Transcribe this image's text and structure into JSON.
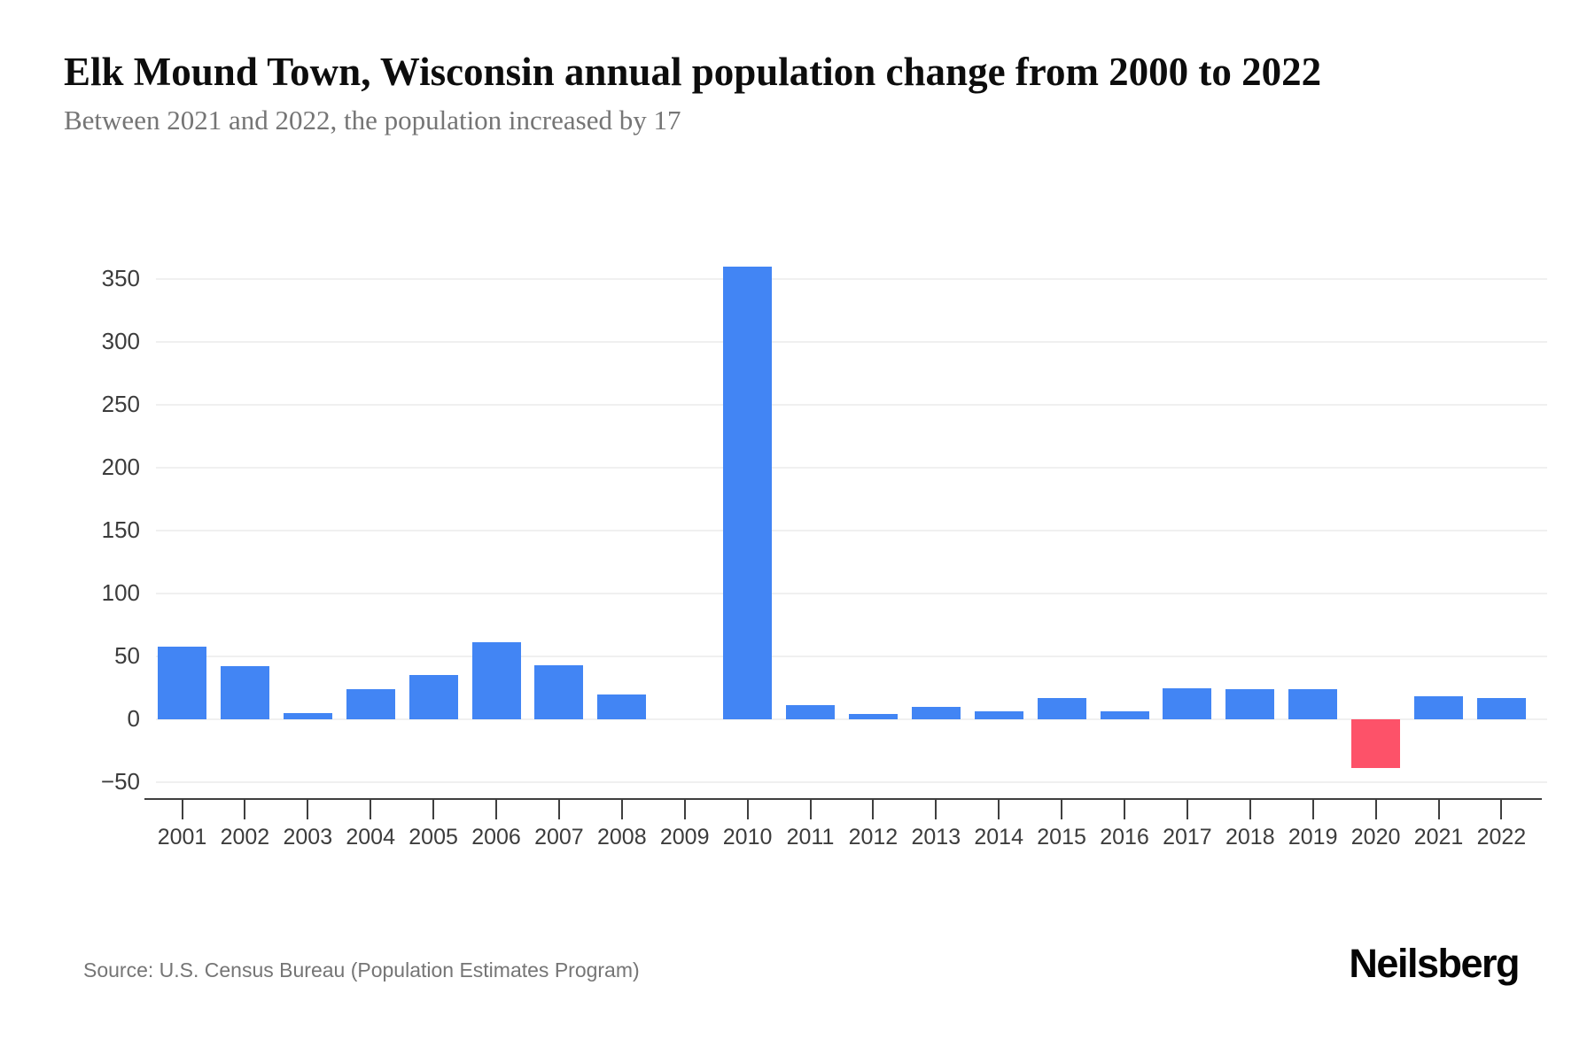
{
  "header": {
    "title": "Elk Mound Town, Wisconsin annual population change from 2000 to 2022",
    "subtitle": "Between 2021 and 2022, the population increased by 17"
  },
  "footer": {
    "source": "Source: U.S. Census Bureau (Population Estimates Program)",
    "brand": "Neilsberg"
  },
  "chart_data": {
    "type": "bar",
    "title": "Elk Mound Town, Wisconsin annual population change from 2000 to 2022",
    "subtitle": "Between 2021 and 2022, the population increased by 17",
    "categories": [
      "2001",
      "2002",
      "2003",
      "2004",
      "2005",
      "2006",
      "2007",
      "2008",
      "2009",
      "2010",
      "2011",
      "2012",
      "2013",
      "2014",
      "2015",
      "2016",
      "2017",
      "2018",
      "2019",
      "2020",
      "2021",
      "2022"
    ],
    "values": [
      58,
      42,
      5,
      24,
      35,
      61,
      43,
      20,
      0,
      360,
      11,
      4,
      10,
      6,
      17,
      6,
      25,
      24,
      24,
      -39,
      18,
      17
    ],
    "xlabel": "",
    "ylabel": "",
    "yticks": [
      350,
      300,
      250,
      200,
      150,
      100,
      50,
      0,
      -50
    ],
    "ytick_labels": [
      "350",
      "300",
      "250",
      "200",
      "150",
      "100",
      "50",
      "0",
      "−50"
    ],
    "ylim": [
      -50,
      375
    ],
    "grid": true,
    "legend": false,
    "positive_color": "#4285F4",
    "negative_color": "#FD5269",
    "grid_color": "#f0f0f0",
    "axis_color": "#3f3f3f"
  }
}
